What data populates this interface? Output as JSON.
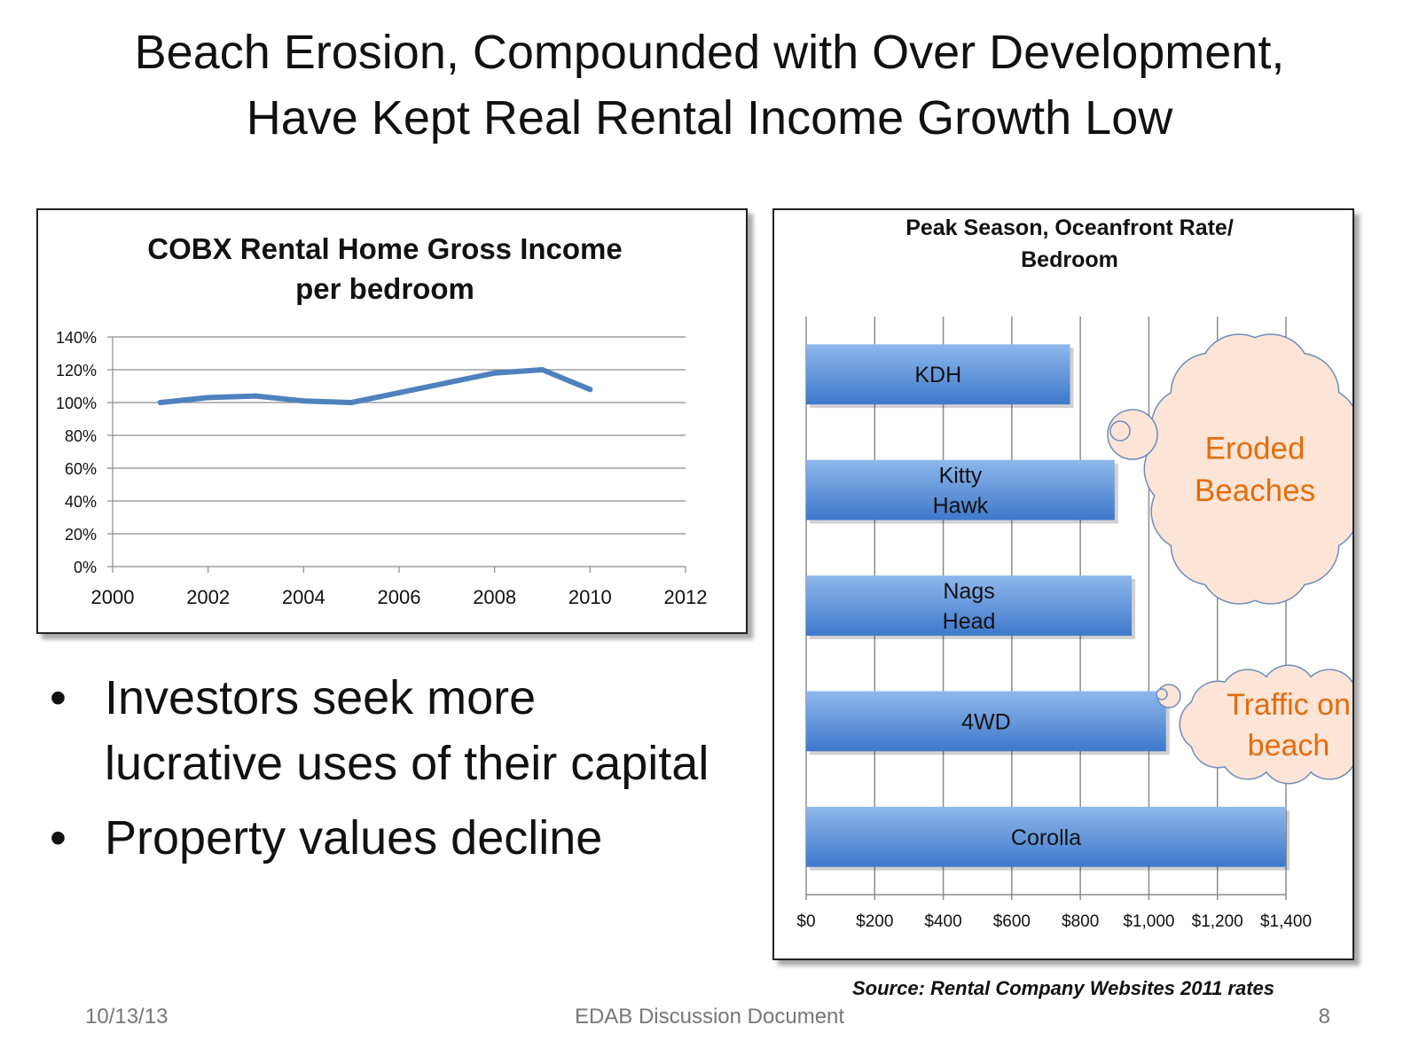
{
  "slide": {
    "title_line1": "Beach Erosion, Compounded with Over Development,",
    "title_line2": "Have Kept Real Rental Income Growth Low",
    "bullets": [
      "Investors seek more lucrative uses of their capital",
      "Property values decline"
    ],
    "bullet_glyph": "•",
    "source": "Source: Rental Company Websites 2011 rates",
    "footer": {
      "date": "10/13/13",
      "center": "EDAB Discussion Document",
      "page": "8"
    },
    "callouts": [
      {
        "name": "eroded-beaches",
        "lines": [
          "Eroded",
          "Beaches"
        ]
      },
      {
        "name": "traffic-on-beach",
        "lines": [
          "Traffic on",
          "beach"
        ]
      }
    ],
    "colors": {
      "line": "#4f81bd",
      "bar_top": "#8fb8ec",
      "bar_bottom": "#3e78cb",
      "cloud_fill": "#fce4d6",
      "cloud_stroke": "#6d8cbd",
      "cloud_text": "#e46c0a"
    }
  },
  "chart_data": [
    {
      "type": "line",
      "title_lines": [
        "COBX Rental Home Gross Income",
        "per bedroom"
      ],
      "x": [
        2001,
        2002,
        2003,
        2004,
        2005,
        2006,
        2007,
        2008,
        2009,
        2010
      ],
      "series": [
        {
          "values": [
            100,
            103,
            104,
            101,
            100,
            106,
            112,
            118,
            120,
            108
          ]
        }
      ],
      "xlim": [
        2000,
        2012
      ],
      "x_ticks": [
        2000,
        2002,
        2004,
        2006,
        2008,
        2010,
        2012
      ],
      "ylim": [
        0,
        140
      ],
      "y_ticks": [
        0,
        20,
        40,
        60,
        80,
        100,
        120,
        140
      ],
      "y_tick_labels": [
        "0%",
        "20%",
        "40%",
        "60%",
        "80%",
        "100%",
        "120%",
        "140%"
      ],
      "grid": true
    },
    {
      "type": "bar",
      "orientation": "horizontal",
      "title_lines": [
        "Peak Season, Oceanfront Rate/",
        "Bedroom"
      ],
      "categories": [
        [
          "KDH"
        ],
        [
          "Kitty",
          "Hawk"
        ],
        [
          "Nags",
          "Head"
        ],
        [
          "4WD"
        ],
        [
          "Corolla"
        ]
      ],
      "values": [
        770,
        900,
        950,
        1050,
        1400
      ],
      "xlim": [
        0,
        1400
      ],
      "x_ticks": [
        0,
        200,
        400,
        600,
        800,
        1000,
        1200,
        1400
      ],
      "x_tick_labels": [
        "$0",
        "$200",
        "$400",
        "$600",
        "$800",
        "$1,000",
        "$1,200",
        "$1,400"
      ],
      "grid": true
    }
  ]
}
